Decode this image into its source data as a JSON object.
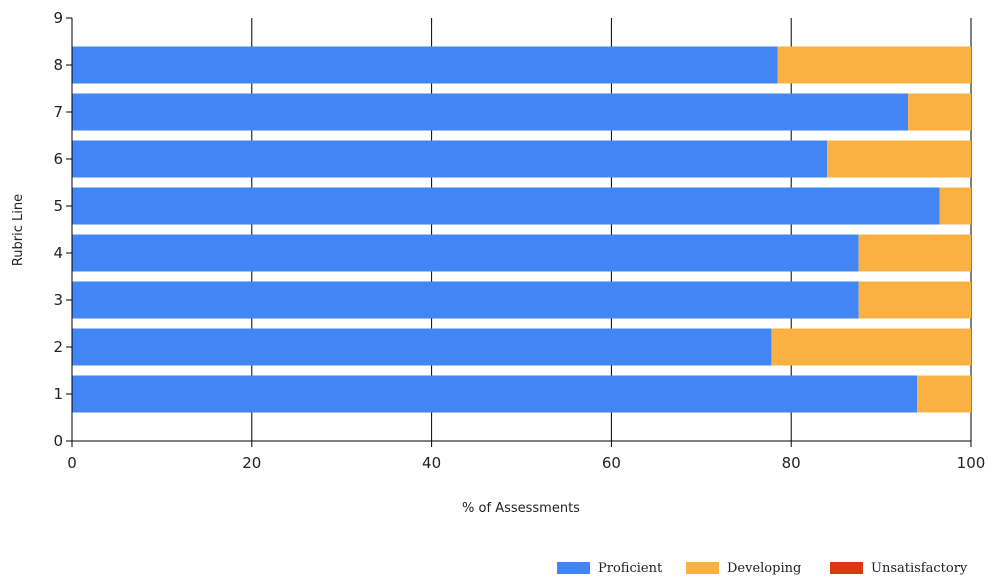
{
  "chart_data": {
    "type": "bar",
    "orientation": "horizontal",
    "stacked": true,
    "categories": [
      "1",
      "2",
      "3",
      "4",
      "5",
      "6",
      "7",
      "8"
    ],
    "series": [
      {
        "name": "Proficient",
        "color": "#4285f4",
        "values": [
          94,
          77.8,
          87.5,
          87.5,
          96.5,
          84,
          93,
          78.5
        ]
      },
      {
        "name": "Developing",
        "color": "#fbb142",
        "values": [
          6,
          22.2,
          12.5,
          12.5,
          3.5,
          16,
          7,
          21.5
        ]
      },
      {
        "name": "Unsatisfactory",
        "color": "#dc3912",
        "values": [
          0,
          0,
          0,
          0,
          0,
          0,
          0,
          0
        ]
      }
    ],
    "xlabel": "% of Assessments",
    "ylabel": "Rubric Line",
    "xlim": [
      0,
      100
    ],
    "ylim": [
      0,
      9
    ],
    "xticks": [
      "0",
      "20",
      "40",
      "60",
      "80",
      "100"
    ],
    "yticks": [
      "0",
      "1",
      "2",
      "3",
      "4",
      "5",
      "6",
      "7",
      "8",
      "9"
    ],
    "grid": "vertical",
    "legend_position": "bottom-right"
  }
}
